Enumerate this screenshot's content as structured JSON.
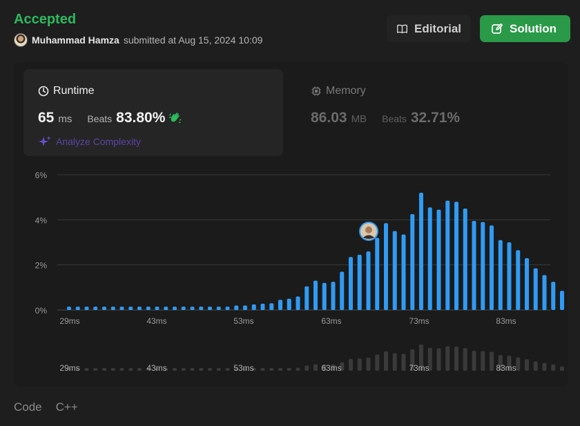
{
  "header": {
    "status": "Accepted",
    "user_name": "Muhammad Hamza",
    "submitted_text": "submitted at Aug 15, 2024 10:09"
  },
  "buttons": {
    "editorial": "Editorial",
    "solution": "Solution"
  },
  "runtime": {
    "label": "Runtime",
    "value": "65",
    "unit": "ms",
    "beats_label": "Beats",
    "beats_value": "83.80%"
  },
  "memory": {
    "label": "Memory",
    "value": "86.03",
    "unit": "MB",
    "beats_label": "Beats",
    "beats_value": "32.71%"
  },
  "analyze_label": "Analyze Complexity",
  "tabs": [
    "Code",
    "C++"
  ],
  "colors": {
    "accent_green": "#2cbb5d",
    "bar_blue": "#2f9bf4",
    "solution_button": "#2a9a48"
  },
  "chart_data": {
    "type": "bar",
    "y_ticks": [
      "6%",
      "4%",
      "2%",
      "0%"
    ],
    "ylim": [
      0,
      6
    ],
    "x_ticks": [
      "29ms",
      "43ms",
      "53ms",
      "63ms",
      "73ms",
      "83ms"
    ],
    "user_runtime": "65ms",
    "values": [
      0.15,
      0.15,
      0.15,
      0.15,
      0.15,
      0.15,
      0.15,
      0.15,
      0.15,
      0.15,
      0.15,
      0.15,
      0.15,
      0.15,
      0.15,
      0.15,
      0.15,
      0.15,
      0.15,
      0.2,
      0.2,
      0.25,
      0.28,
      0.3,
      0.45,
      0.5,
      0.6,
      1.05,
      1.3,
      1.2,
      1.25,
      1.7,
      2.35,
      2.45,
      2.6,
      3.2,
      3.85,
      3.5,
      3.35,
      4.25,
      5.2,
      4.55,
      4.45,
      4.85,
      4.8,
      4.5,
      3.95,
      3.9,
      3.75,
      3.1,
      3.0,
      2.65,
      2.3,
      1.85,
      1.55,
      1.25,
      0.85
    ]
  }
}
